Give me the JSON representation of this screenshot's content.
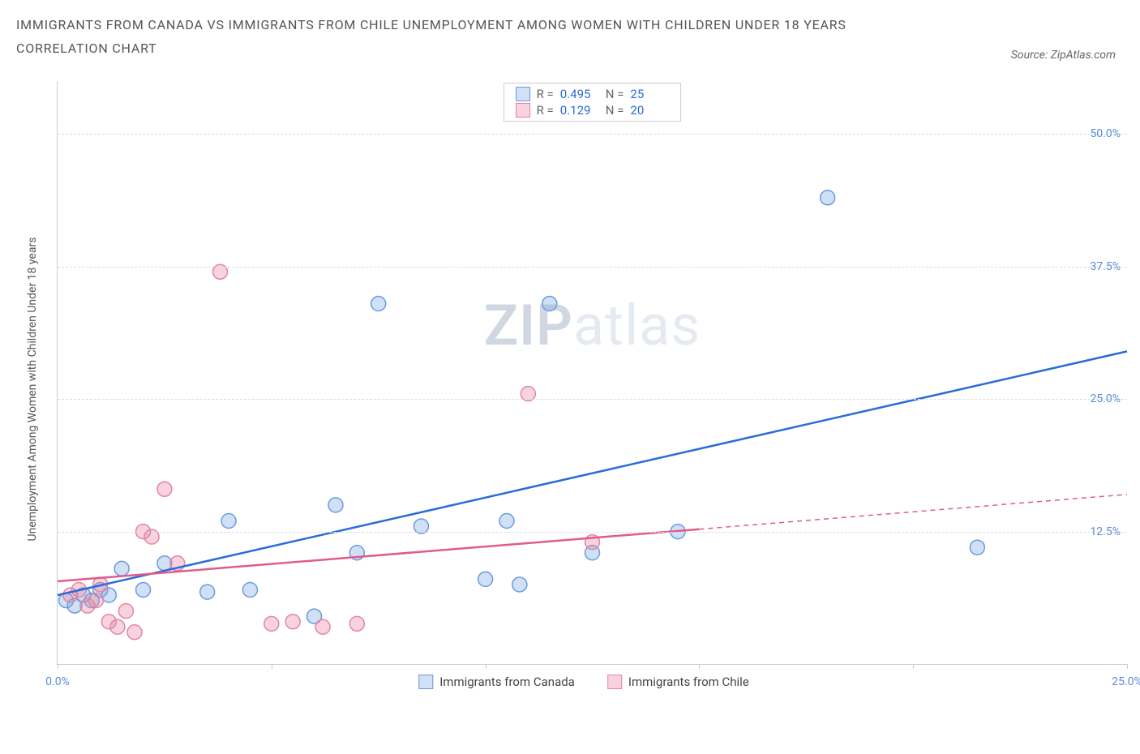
{
  "title": "IMMIGRANTS FROM CANADA VS IMMIGRANTS FROM CHILE UNEMPLOYMENT AMONG WOMEN WITH CHILDREN UNDER 18 YEARS",
  "subtitle": "CORRELATION CHART",
  "source_label": "Source: ZipAtlas.com",
  "y_axis_label": "Unemployment Among Women with Children Under 18 years",
  "watermark_bold": "ZIP",
  "watermark_light": "atlas",
  "chart": {
    "type": "scatter",
    "xlim": [
      0,
      25
    ],
    "ylim": [
      0,
      55
    ],
    "y_ticks": [
      {
        "v": 12.5,
        "label": "12.5%"
      },
      {
        "v": 25.0,
        "label": "25.0%"
      },
      {
        "v": 37.5,
        "label": "37.5%"
      },
      {
        "v": 50.0,
        "label": "50.0%"
      }
    ],
    "x_ticks": [
      {
        "v": 0,
        "label": "0.0%"
      },
      {
        "v": 5,
        "label": ""
      },
      {
        "v": 10,
        "label": ""
      },
      {
        "v": 15,
        "label": ""
      },
      {
        "v": 20,
        "label": ""
      },
      {
        "v": 25,
        "label": "25.0%"
      }
    ],
    "grid_color": "#dddddd",
    "axis_color": "#cccccc",
    "background_color": "#ffffff",
    "series": [
      {
        "id": "canada",
        "name": "Immigrants from Canada",
        "fill": "rgba(120,165,225,0.35)",
        "stroke": "#6a9be0",
        "line_color": "#2a6dd6",
        "line_dash": "",
        "marker_r": 9,
        "R": 0.495,
        "N": 25,
        "trend": {
          "x1": 0,
          "y1": 6.5,
          "x2": 25,
          "y2": 29.5,
          "observed_xmax": 25
        },
        "points": [
          {
            "x": 0.2,
            "y": 6.0
          },
          {
            "x": 0.4,
            "y": 5.5
          },
          {
            "x": 0.6,
            "y": 6.5
          },
          {
            "x": 0.8,
            "y": 6.0
          },
          {
            "x": 1.0,
            "y": 7.0
          },
          {
            "x": 1.2,
            "y": 6.5
          },
          {
            "x": 1.5,
            "y": 9.0
          },
          {
            "x": 2.0,
            "y": 7.0
          },
          {
            "x": 2.5,
            "y": 9.5
          },
          {
            "x": 3.5,
            "y": 6.8
          },
          {
            "x": 4.0,
            "y": 13.5
          },
          {
            "x": 4.5,
            "y": 7.0
          },
          {
            "x": 6.0,
            "y": 4.5
          },
          {
            "x": 6.5,
            "y": 15.0
          },
          {
            "x": 7.0,
            "y": 10.5
          },
          {
            "x": 7.5,
            "y": 34.0
          },
          {
            "x": 8.5,
            "y": 13.0
          },
          {
            "x": 10.0,
            "y": 8.0
          },
          {
            "x": 10.5,
            "y": 13.5
          },
          {
            "x": 10.8,
            "y": 7.5
          },
          {
            "x": 11.5,
            "y": 34.0
          },
          {
            "x": 12.5,
            "y": 10.5
          },
          {
            "x": 14.5,
            "y": 12.5
          },
          {
            "x": 18.0,
            "y": 44.0
          },
          {
            "x": 21.5,
            "y": 11.0
          }
        ]
      },
      {
        "id": "chile",
        "name": "Immigrants from Chile",
        "fill": "rgba(235,130,160,0.35)",
        "stroke": "#e087a3",
        "line_color": "#e05c8a",
        "line_dash": "6,5",
        "marker_r": 9,
        "R": 0.129,
        "N": 20,
        "trend": {
          "x1": 0,
          "y1": 7.8,
          "x2": 25,
          "y2": 16.0,
          "observed_xmax": 15
        },
        "points": [
          {
            "x": 0.3,
            "y": 6.5
          },
          {
            "x": 0.5,
            "y": 7.0
          },
          {
            "x": 0.7,
            "y": 5.5
          },
          {
            "x": 0.9,
            "y": 6.0
          },
          {
            "x": 1.0,
            "y": 7.5
          },
          {
            "x": 1.2,
            "y": 4.0
          },
          {
            "x": 1.4,
            "y": 3.5
          },
          {
            "x": 1.6,
            "y": 5.0
          },
          {
            "x": 1.8,
            "y": 3.0
          },
          {
            "x": 2.0,
            "y": 12.5
          },
          {
            "x": 2.2,
            "y": 12.0
          },
          {
            "x": 2.5,
            "y": 16.5
          },
          {
            "x": 2.8,
            "y": 9.5
          },
          {
            "x": 3.8,
            "y": 37.0
          },
          {
            "x": 5.0,
            "y": 3.8
          },
          {
            "x": 5.5,
            "y": 4.0
          },
          {
            "x": 6.2,
            "y": 3.5
          },
          {
            "x": 7.0,
            "y": 3.8
          },
          {
            "x": 11.0,
            "y": 25.5
          },
          {
            "x": 12.5,
            "y": 11.5
          }
        ]
      }
    ]
  },
  "stats_labels": {
    "R": "R =",
    "N": "N ="
  },
  "colors": {
    "tick_text": "#5b8dd6",
    "title_text": "#555555"
  }
}
